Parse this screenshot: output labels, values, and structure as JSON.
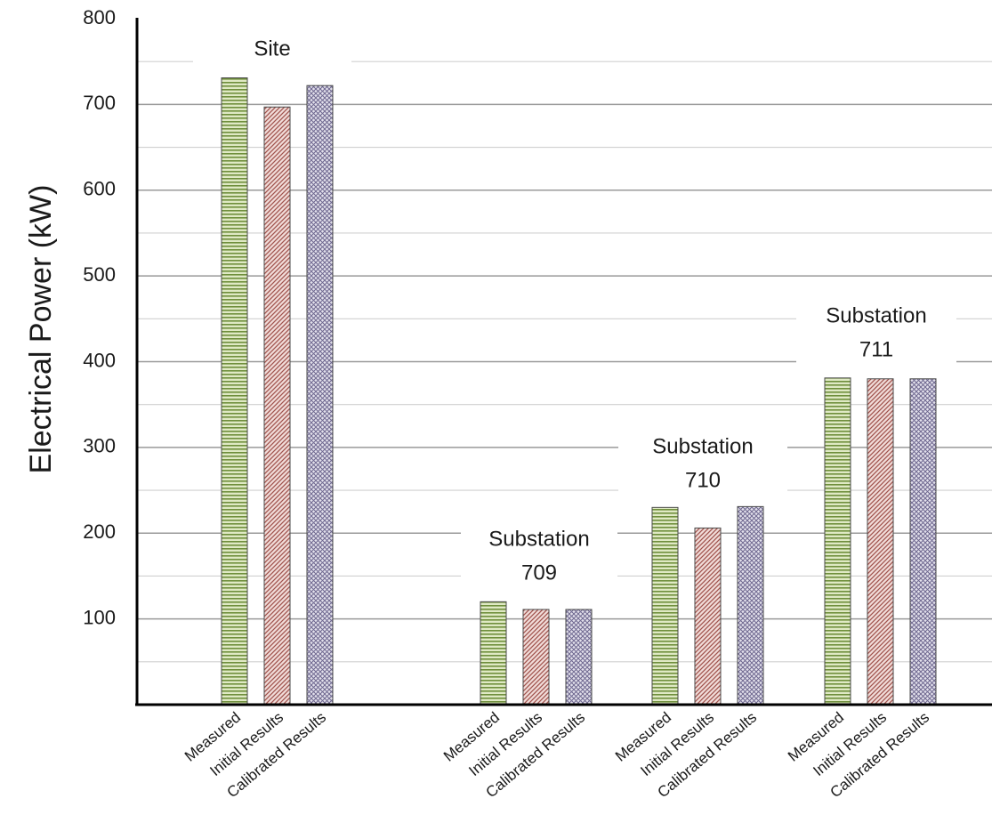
{
  "chart_data": {
    "type": "bar",
    "title": "",
    "xlabel": "",
    "ylabel": "Electrical Power (kW)",
    "ylim": [
      0,
      800
    ],
    "yticks": [
      100,
      200,
      300,
      400,
      500,
      600,
      700,
      800
    ],
    "grid": true,
    "legend": "none",
    "categories": [
      "Measured",
      "Initial Results",
      "Calibrated Results"
    ],
    "groups": [
      {
        "label_lines": [
          "Site"
        ],
        "values": [
          731,
          697,
          722
        ]
      },
      {
        "label_lines": [
          "Substation",
          "709"
        ],
        "values": [
          120,
          111,
          111
        ]
      },
      {
        "label_lines": [
          "Substation",
          "710"
        ],
        "values": [
          230,
          206,
          231
        ]
      },
      {
        "label_lines": [
          "Substation",
          "711"
        ],
        "values": [
          381,
          380,
          380
        ]
      }
    ],
    "colors": {
      "Measured": "#b9d08f",
      "Initial Results": "#dca9a5",
      "Calibrated Results": "#b2aec6"
    }
  }
}
